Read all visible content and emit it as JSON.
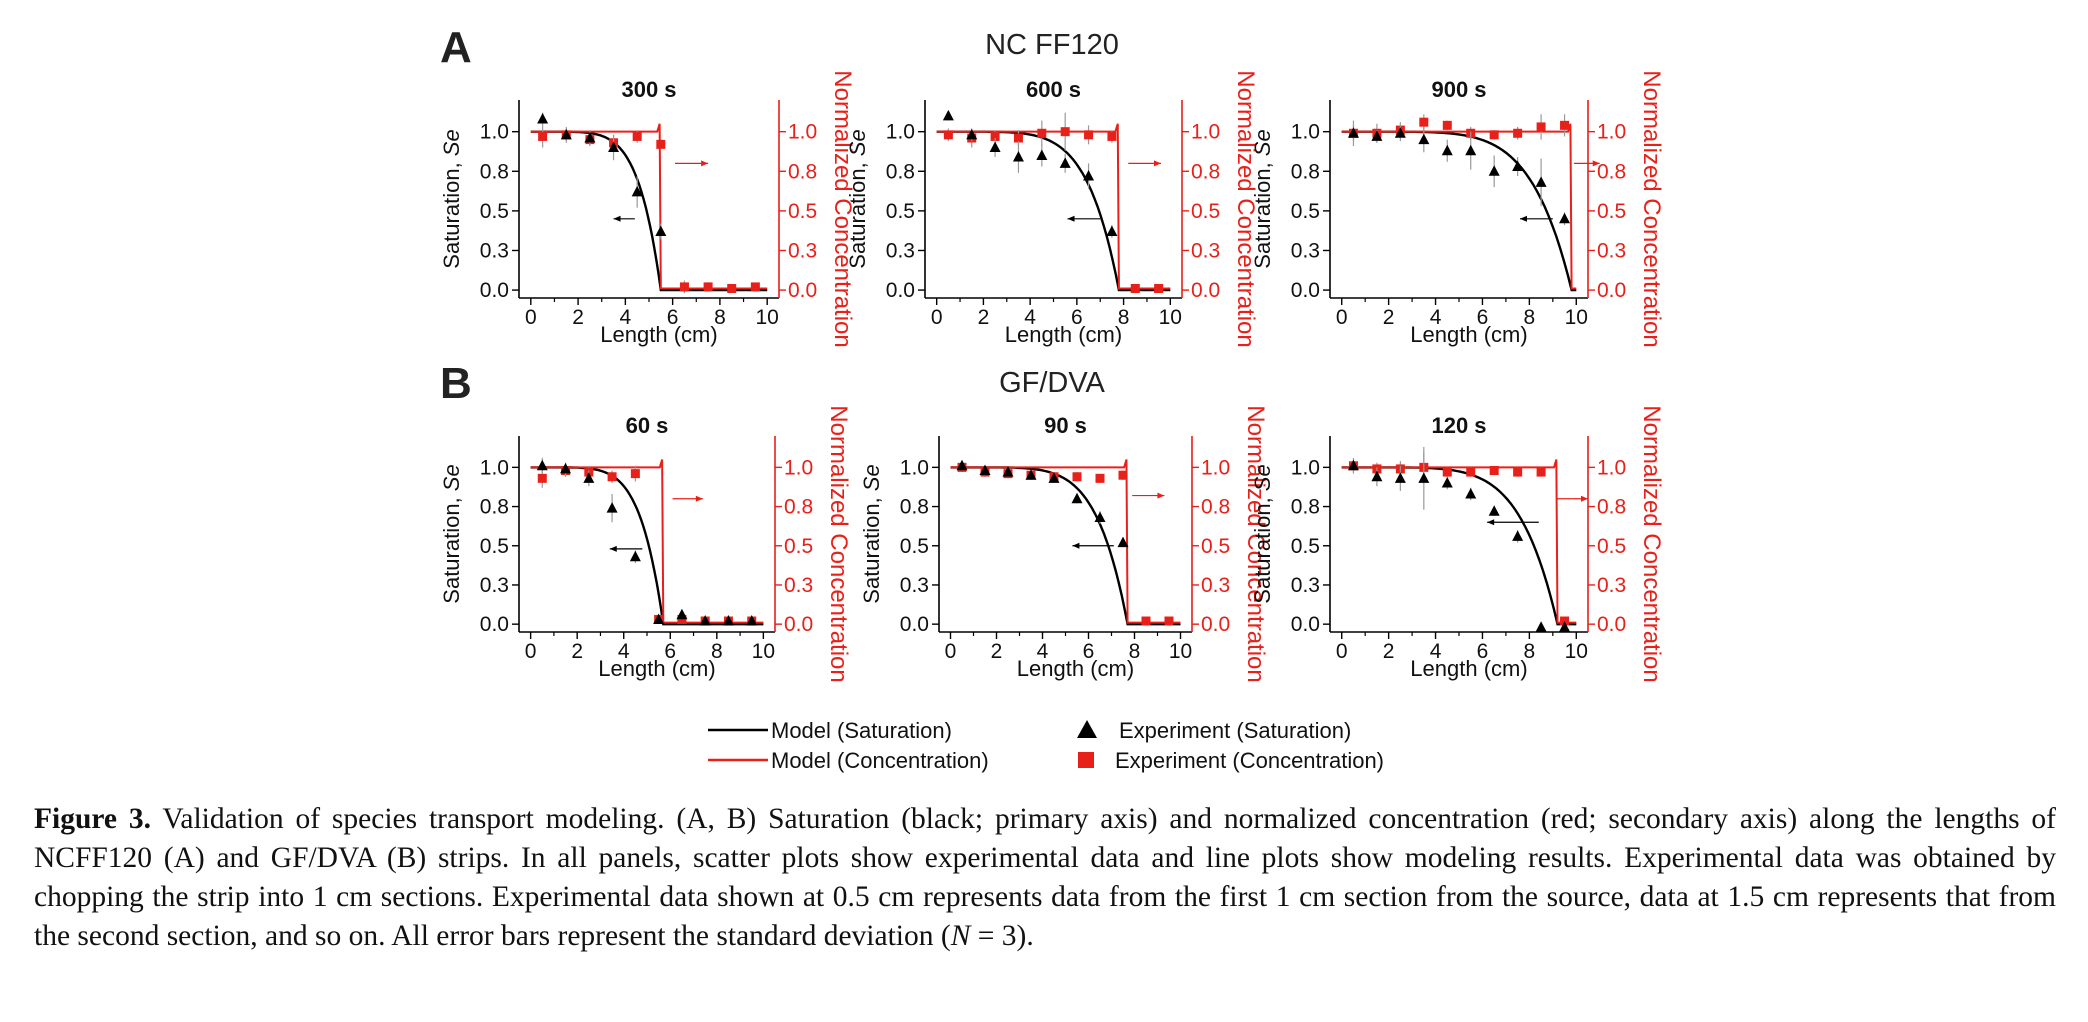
{
  "colors": {
    "model_saturation": "#000000",
    "model_concentration": "#e8201a",
    "experiment_saturation": "#000000",
    "experiment_concentration": "#e8201a"
  },
  "rows": [
    {
      "letter": "A",
      "title": "NC FF120"
    },
    {
      "letter": "B",
      "title": "GF/DVA"
    }
  ],
  "axis_labels": {
    "x": "Length (cm)",
    "y_left_prefix": "Saturation, ",
    "y_left_italic": "Se",
    "y_right": "Normalized Concentration"
  },
  "legend": [
    {
      "label": "Model (Saturation)",
      "kind": "line",
      "color": "#000000"
    },
    {
      "label": "Model (Concentration)",
      "kind": "line",
      "color": "#e8201a"
    },
    {
      "label": "Experiment (Saturation)",
      "kind": "triangle",
      "color": "#000000"
    },
    {
      "label": "Experiment (Concentration)",
      "kind": "square",
      "color": "#e8201a"
    }
  ],
  "caption": {
    "label": "Figure 3.",
    "text": " Validation of species transport modeling. (A, B) Saturation (black; primary axis) and normalized concentration (red; secondary axis) along the lengths of NCFF120 (A) and GF/DVA (B) strips. In all panels, scatter plots show experimental data and line plots show modeling results. Experimental data was obtained by chopping the strip into 1 cm sections. Experimental data shown at 0.5 cm represents data from the first 1 cm section from the source, data at 1.5 cm represents that from the second section, and so on. All error bars represent the standard deviation (",
    "n_italic": "N",
    "tail": " = 3)."
  },
  "chart_data": [
    {
      "type": "scatter",
      "row": "A",
      "title": "300 s",
      "xlabel": "Length (cm)",
      "ylabel": "Saturation, Se",
      "y2label": "Normalized Concentration",
      "xlim": [
        -0.5,
        10.5
      ],
      "ylim": [
        -0.05,
        1.2
      ],
      "y2lim": [
        -0.05,
        1.2
      ],
      "xticks": [
        0,
        2,
        4,
        6,
        8,
        10
      ],
      "yticks": [
        "0.0",
        "0.3",
        "0.5",
        "0.8",
        "1.0"
      ],
      "y2ticks": [
        "0.0",
        "0.3",
        "0.5",
        "0.8",
        "1.0"
      ],
      "front": 5.5,
      "exp_saturation": [
        {
          "x": 0.5,
          "y": 1.08,
          "err": 0.04
        },
        {
          "x": 1.5,
          "y": 0.98,
          "err": 0.04
        },
        {
          "x": 2.5,
          "y": 0.96,
          "err": 0.05
        },
        {
          "x": 3.5,
          "y": 0.9,
          "err": 0.08
        },
        {
          "x": 4.5,
          "y": 0.62,
          "err": 0.1
        },
        {
          "x": 5.5,
          "y": 0.37,
          "err": 0.05
        }
      ],
      "exp_concentration": [
        {
          "x": 0.5,
          "y": 0.97,
          "err": 0.07
        },
        {
          "x": 1.5,
          "y": 0.98,
          "err": 0.05
        },
        {
          "x": 2.5,
          "y": 0.95,
          "err": 0.04
        },
        {
          "x": 3.5,
          "y": 0.93,
          "err": 0.05
        },
        {
          "x": 4.5,
          "y": 0.97,
          "err": 0.04
        },
        {
          "x": 5.5,
          "y": 0.92,
          "err": 0.03
        },
        {
          "x": 6.5,
          "y": 0.02,
          "err": 0.04
        },
        {
          "x": 7.5,
          "y": 0.02,
          "err": 0.03
        },
        {
          "x": 8.5,
          "y": 0.01,
          "err": 0.02
        },
        {
          "x": 9.5,
          "y": 0.02,
          "err": 0.02
        }
      ],
      "left_arrow": {
        "from_x": 4.4,
        "to_x": 3.5,
        "y": 0.45
      },
      "right_arrow": {
        "from_x": 6.1,
        "to_x": 7.5,
        "y": 0.8
      }
    },
    {
      "type": "scatter",
      "row": "A",
      "title": "600 s",
      "xlabel": "Length (cm)",
      "ylabel": "Saturation, Se",
      "y2label": "Normalized Concentration",
      "xlim": [
        -0.5,
        10.5
      ],
      "ylim": [
        -0.05,
        1.2
      ],
      "y2lim": [
        -0.05,
        1.2
      ],
      "xticks": [
        0,
        2,
        4,
        6,
        8,
        10
      ],
      "yticks": [
        "0.0",
        "0.3",
        "0.5",
        "0.8",
        "1.0"
      ],
      "y2ticks": [
        "0.0",
        "0.3",
        "0.5",
        "0.8",
        "1.0"
      ],
      "front": 7.8,
      "exp_saturation": [
        {
          "x": 0.5,
          "y": 1.1,
          "err": 0.03
        },
        {
          "x": 1.5,
          "y": 0.98,
          "err": 0.04
        },
        {
          "x": 2.5,
          "y": 0.9,
          "err": 0.06
        },
        {
          "x": 3.5,
          "y": 0.84,
          "err": 0.1
        },
        {
          "x": 4.5,
          "y": 0.85,
          "err": 0.07
        },
        {
          "x": 5.5,
          "y": 0.8,
          "err": 0.06
        },
        {
          "x": 6.5,
          "y": 0.72,
          "err": 0.08
        },
        {
          "x": 7.5,
          "y": 0.37,
          "err": 0.04
        }
      ],
      "exp_concentration": [
        {
          "x": 0.5,
          "y": 0.98,
          "err": 0.04
        },
        {
          "x": 1.5,
          "y": 0.96,
          "err": 0.06
        },
        {
          "x": 2.5,
          "y": 0.97,
          "err": 0.04
        },
        {
          "x": 3.5,
          "y": 0.96,
          "err": 0.05
        },
        {
          "x": 4.5,
          "y": 0.99,
          "err": 0.08
        },
        {
          "x": 5.5,
          "y": 1.0,
          "err": 0.12
        },
        {
          "x": 6.5,
          "y": 0.98,
          "err": 0.06
        },
        {
          "x": 7.5,
          "y": 0.97,
          "err": 0.04
        },
        {
          "x": 8.5,
          "y": 0.01,
          "err": 0.02
        },
        {
          "x": 9.5,
          "y": 0.01,
          "err": 0.02
        }
      ],
      "left_arrow": {
        "from_x": 7.0,
        "to_x": 5.6,
        "y": 0.45
      },
      "right_arrow": {
        "from_x": 8.2,
        "to_x": 9.6,
        "y": 0.8
      }
    },
    {
      "type": "scatter",
      "row": "A",
      "title": "900 s",
      "xlabel": "Length (cm)",
      "ylabel": "Saturation, Se",
      "y2label": "Normalized Concentration",
      "xlim": [
        -0.5,
        10.5
      ],
      "ylim": [
        -0.05,
        1.2
      ],
      "y2lim": [
        -0.05,
        1.2
      ],
      "xticks": [
        0,
        2,
        4,
        6,
        8,
        10
      ],
      "yticks": [
        "0.0",
        "0.3",
        "0.5",
        "0.8",
        "1.0"
      ],
      "y2ticks": [
        "0.0",
        "0.3",
        "0.5",
        "0.8",
        "1.0"
      ],
      "front": 9.8,
      "exp_saturation": [
        {
          "x": 0.5,
          "y": 0.99,
          "err": 0.05
        },
        {
          "x": 1.5,
          "y": 0.97,
          "err": 0.04
        },
        {
          "x": 2.5,
          "y": 0.99,
          "err": 0.05
        },
        {
          "x": 3.5,
          "y": 0.95,
          "err": 0.08
        },
        {
          "x": 4.5,
          "y": 0.88,
          "err": 0.07
        },
        {
          "x": 5.5,
          "y": 0.88,
          "err": 0.12
        },
        {
          "x": 6.5,
          "y": 0.75,
          "err": 0.1
        },
        {
          "x": 7.5,
          "y": 0.78,
          "err": 0.06
        },
        {
          "x": 8.5,
          "y": 0.68,
          "err": 0.15
        },
        {
          "x": 9.5,
          "y": 0.45,
          "err": 0.04
        }
      ],
      "exp_concentration": [
        {
          "x": 0.5,
          "y": 0.99,
          "err": 0.08
        },
        {
          "x": 1.5,
          "y": 0.99,
          "err": 0.06
        },
        {
          "x": 2.5,
          "y": 1.01,
          "err": 0.05
        },
        {
          "x": 3.5,
          "y": 1.06,
          "err": 0.05
        },
        {
          "x": 4.5,
          "y": 1.04,
          "err": 0.03
        },
        {
          "x": 5.5,
          "y": 0.99,
          "err": 0.04
        },
        {
          "x": 6.5,
          "y": 0.98,
          "err": 0.03
        },
        {
          "x": 7.5,
          "y": 0.99,
          "err": 0.04
        },
        {
          "x": 8.5,
          "y": 1.03,
          "err": 0.08
        },
        {
          "x": 9.5,
          "y": 1.04,
          "err": 0.07
        }
      ],
      "left_arrow": {
        "from_x": 9.0,
        "to_x": 7.6,
        "y": 0.45
      },
      "right_arrow": {
        "from_x": 9.9,
        "to_x": 11.0,
        "y": 0.8
      }
    },
    {
      "type": "scatter",
      "row": "B",
      "title": "60 s",
      "xlabel": "Length (cm)",
      "ylabel": "Saturation, Se",
      "y2label": "Normalized Concentration",
      "xlim": [
        -0.5,
        10.5
      ],
      "ylim": [
        -0.05,
        1.2
      ],
      "y2lim": [
        -0.05,
        1.2
      ],
      "xticks": [
        0,
        2,
        4,
        6,
        8,
        10
      ],
      "yticks": [
        "0.0",
        "0.3",
        "0.5",
        "0.8",
        "1.0"
      ],
      "y2ticks": [
        "0.0",
        "0.3",
        "0.5",
        "0.8",
        "1.0"
      ],
      "front": 5.7,
      "exp_saturation": [
        {
          "x": 0.5,
          "y": 1.01,
          "err": 0.05
        },
        {
          "x": 1.5,
          "y": 0.99,
          "err": 0.04
        },
        {
          "x": 2.5,
          "y": 0.93,
          "err": 0.05
        },
        {
          "x": 3.5,
          "y": 0.74,
          "err": 0.09
        },
        {
          "x": 4.5,
          "y": 0.43,
          "err": 0.04
        },
        {
          "x": 5.5,
          "y": 0.03,
          "err": 0.02
        },
        {
          "x": 6.5,
          "y": 0.06,
          "err": 0.02
        },
        {
          "x": 7.5,
          "y": 0.02,
          "err": 0.02
        },
        {
          "x": 8.5,
          "y": 0.02,
          "err": 0.02
        },
        {
          "x": 9.5,
          "y": 0.02,
          "err": 0.02
        }
      ],
      "exp_concentration": [
        {
          "x": 0.5,
          "y": 0.93,
          "err": 0.06
        },
        {
          "x": 1.5,
          "y": 0.98,
          "err": 0.04
        },
        {
          "x": 2.5,
          "y": 0.97,
          "err": 0.04
        },
        {
          "x": 3.5,
          "y": 0.94,
          "err": 0.04
        },
        {
          "x": 4.5,
          "y": 0.96,
          "err": 0.05
        },
        {
          "x": 5.5,
          "y": 0.03,
          "err": 0.02
        },
        {
          "x": 6.5,
          "y": 0.03,
          "err": 0.02
        },
        {
          "x": 7.5,
          "y": 0.02,
          "err": 0.02
        },
        {
          "x": 8.5,
          "y": 0.02,
          "err": 0.02
        },
        {
          "x": 9.5,
          "y": 0.02,
          "err": 0.02
        }
      ],
      "left_arrow": {
        "from_x": 4.8,
        "to_x": 3.4,
        "y": 0.48
      },
      "right_arrow": {
        "from_x": 6.1,
        "to_x": 7.4,
        "y": 0.8
      }
    },
    {
      "type": "scatter",
      "row": "B",
      "title": "90 s",
      "xlabel": "Length (cm)",
      "ylabel": "Saturation, Se",
      "y2label": "Normalized Concentration",
      "xlim": [
        -0.5,
        10.5
      ],
      "ylim": [
        -0.05,
        1.2
      ],
      "y2lim": [
        -0.05,
        1.2
      ],
      "xticks": [
        0,
        2,
        4,
        6,
        8,
        10
      ],
      "yticks": [
        "0.0",
        "0.3",
        "0.5",
        "0.8",
        "1.0"
      ],
      "y2ticks": [
        "0.0",
        "0.3",
        "0.5",
        "0.8",
        "1.0"
      ],
      "front": 7.7,
      "exp_saturation": [
        {
          "x": 0.5,
          "y": 1.01,
          "err": 0.03
        },
        {
          "x": 1.5,
          "y": 0.98,
          "err": 0.02
        },
        {
          "x": 2.5,
          "y": 0.97,
          "err": 0.03
        },
        {
          "x": 3.5,
          "y": 0.95,
          "err": 0.03
        },
        {
          "x": 4.5,
          "y": 0.93,
          "err": 0.03
        },
        {
          "x": 5.5,
          "y": 0.8,
          "err": 0.03
        },
        {
          "x": 6.5,
          "y": 0.68,
          "err": 0.04
        },
        {
          "x": 7.5,
          "y": 0.52,
          "err": 0.03
        }
      ],
      "exp_concentration": [
        {
          "x": 0.5,
          "y": 1.0,
          "err": 0.03
        },
        {
          "x": 1.5,
          "y": 0.97,
          "err": 0.03
        },
        {
          "x": 2.5,
          "y": 0.96,
          "err": 0.03
        },
        {
          "x": 3.5,
          "y": 0.95,
          "err": 0.03
        },
        {
          "x": 4.5,
          "y": 0.94,
          "err": 0.03
        },
        {
          "x": 5.5,
          "y": 0.94,
          "err": 0.03
        },
        {
          "x": 6.5,
          "y": 0.93,
          "err": 0.03
        },
        {
          "x": 7.5,
          "y": 0.95,
          "err": 0.03
        },
        {
          "x": 8.5,
          "y": 0.02,
          "err": 0.02
        },
        {
          "x": 9.5,
          "y": 0.02,
          "err": 0.02
        }
      ],
      "left_arrow": {
        "from_x": 7.1,
        "to_x": 5.3,
        "y": 0.5
      },
      "right_arrow": {
        "from_x": 7.9,
        "to_x": 9.3,
        "y": 0.82
      }
    },
    {
      "type": "scatter",
      "row": "B",
      "title": "120 s",
      "xlabel": "Length (cm)",
      "ylabel": "Saturation, Se",
      "y2label": "Normalized Concentration",
      "xlim": [
        -0.5,
        10.5
      ],
      "ylim": [
        -0.05,
        1.2
      ],
      "y2lim": [
        -0.05,
        1.2
      ],
      "xticks": [
        0,
        2,
        4,
        6,
        8,
        10
      ],
      "yticks": [
        "0.0",
        "0.3",
        "0.5",
        "0.8",
        "1.0"
      ],
      "y2ticks": [
        "0.0",
        "0.3",
        "0.5",
        "0.8",
        "1.0"
      ],
      "front": 9.2,
      "exp_saturation": [
        {
          "x": 0.5,
          "y": 1.01,
          "err": 0.04
        },
        {
          "x": 1.5,
          "y": 0.94,
          "err": 0.06
        },
        {
          "x": 2.5,
          "y": 0.93,
          "err": 0.08
        },
        {
          "x": 3.5,
          "y": 0.93,
          "err": 0.2
        },
        {
          "x": 4.5,
          "y": 0.9,
          "err": 0.04
        },
        {
          "x": 5.5,
          "y": 0.83,
          "err": 0.04
        },
        {
          "x": 6.5,
          "y": 0.72,
          "err": 0.03
        },
        {
          "x": 7.5,
          "y": 0.56,
          "err": 0.04
        },
        {
          "x": 8.5,
          "y": -0.02,
          "err": 0.02
        },
        {
          "x": 9.5,
          "y": -0.02,
          "err": 0.02
        }
      ],
      "exp_concentration": [
        {
          "x": 0.5,
          "y": 1.01,
          "err": 0.05
        },
        {
          "x": 1.5,
          "y": 0.99,
          "err": 0.04
        },
        {
          "x": 2.5,
          "y": 0.99,
          "err": 0.05
        },
        {
          "x": 3.5,
          "y": 1.0,
          "err": 0.1
        },
        {
          "x": 4.5,
          "y": 0.97,
          "err": 0.03
        },
        {
          "x": 5.5,
          "y": 0.97,
          "err": 0.03
        },
        {
          "x": 6.5,
          "y": 0.98,
          "err": 0.03
        },
        {
          "x": 7.5,
          "y": 0.97,
          "err": 0.03
        },
        {
          "x": 8.5,
          "y": 0.97,
          "err": 0.03
        },
        {
          "x": 9.5,
          "y": 0.02,
          "err": 0.02
        }
      ],
      "left_arrow": {
        "from_x": 8.4,
        "to_x": 6.2,
        "y": 0.65
      },
      "right_arrow": {
        "from_x": 9.2,
        "to_x": 10.5,
        "y": 0.8
      }
    }
  ]
}
